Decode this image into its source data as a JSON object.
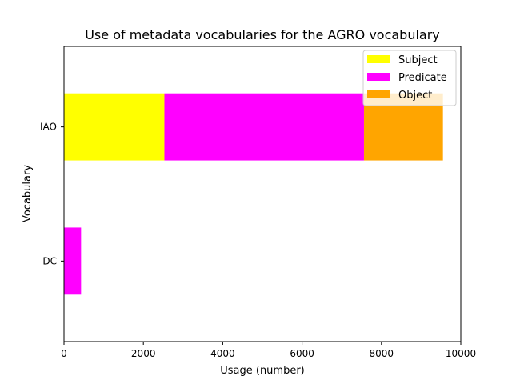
{
  "chart_data": {
    "type": "bar",
    "orientation": "horizontal",
    "stacked": true,
    "title": "Use of metadata vocabularies for the AGRO vocabulary",
    "xlabel": "Usage (number)",
    "ylabel": "Vocabulary",
    "categories": [
      "DC",
      "IAO"
    ],
    "series": [
      {
        "name": "Subject",
        "color": "#ffff00",
        "values": [
          0,
          2530
        ]
      },
      {
        "name": "Predicate",
        "color": "#ff00ff",
        "values": [
          430,
          5030
        ]
      },
      {
        "name": "Object",
        "color": "#ffa500",
        "values": [
          0,
          1990
        ]
      }
    ],
    "xlim": [
      0,
      10000
    ],
    "xticks": [
      0,
      2000,
      4000,
      6000,
      8000,
      10000
    ],
    "xtick_labels": [
      "0",
      "2000",
      "4000",
      "6000",
      "8000",
      "10000"
    ],
    "grid": false,
    "legend_position": "top-right"
  }
}
